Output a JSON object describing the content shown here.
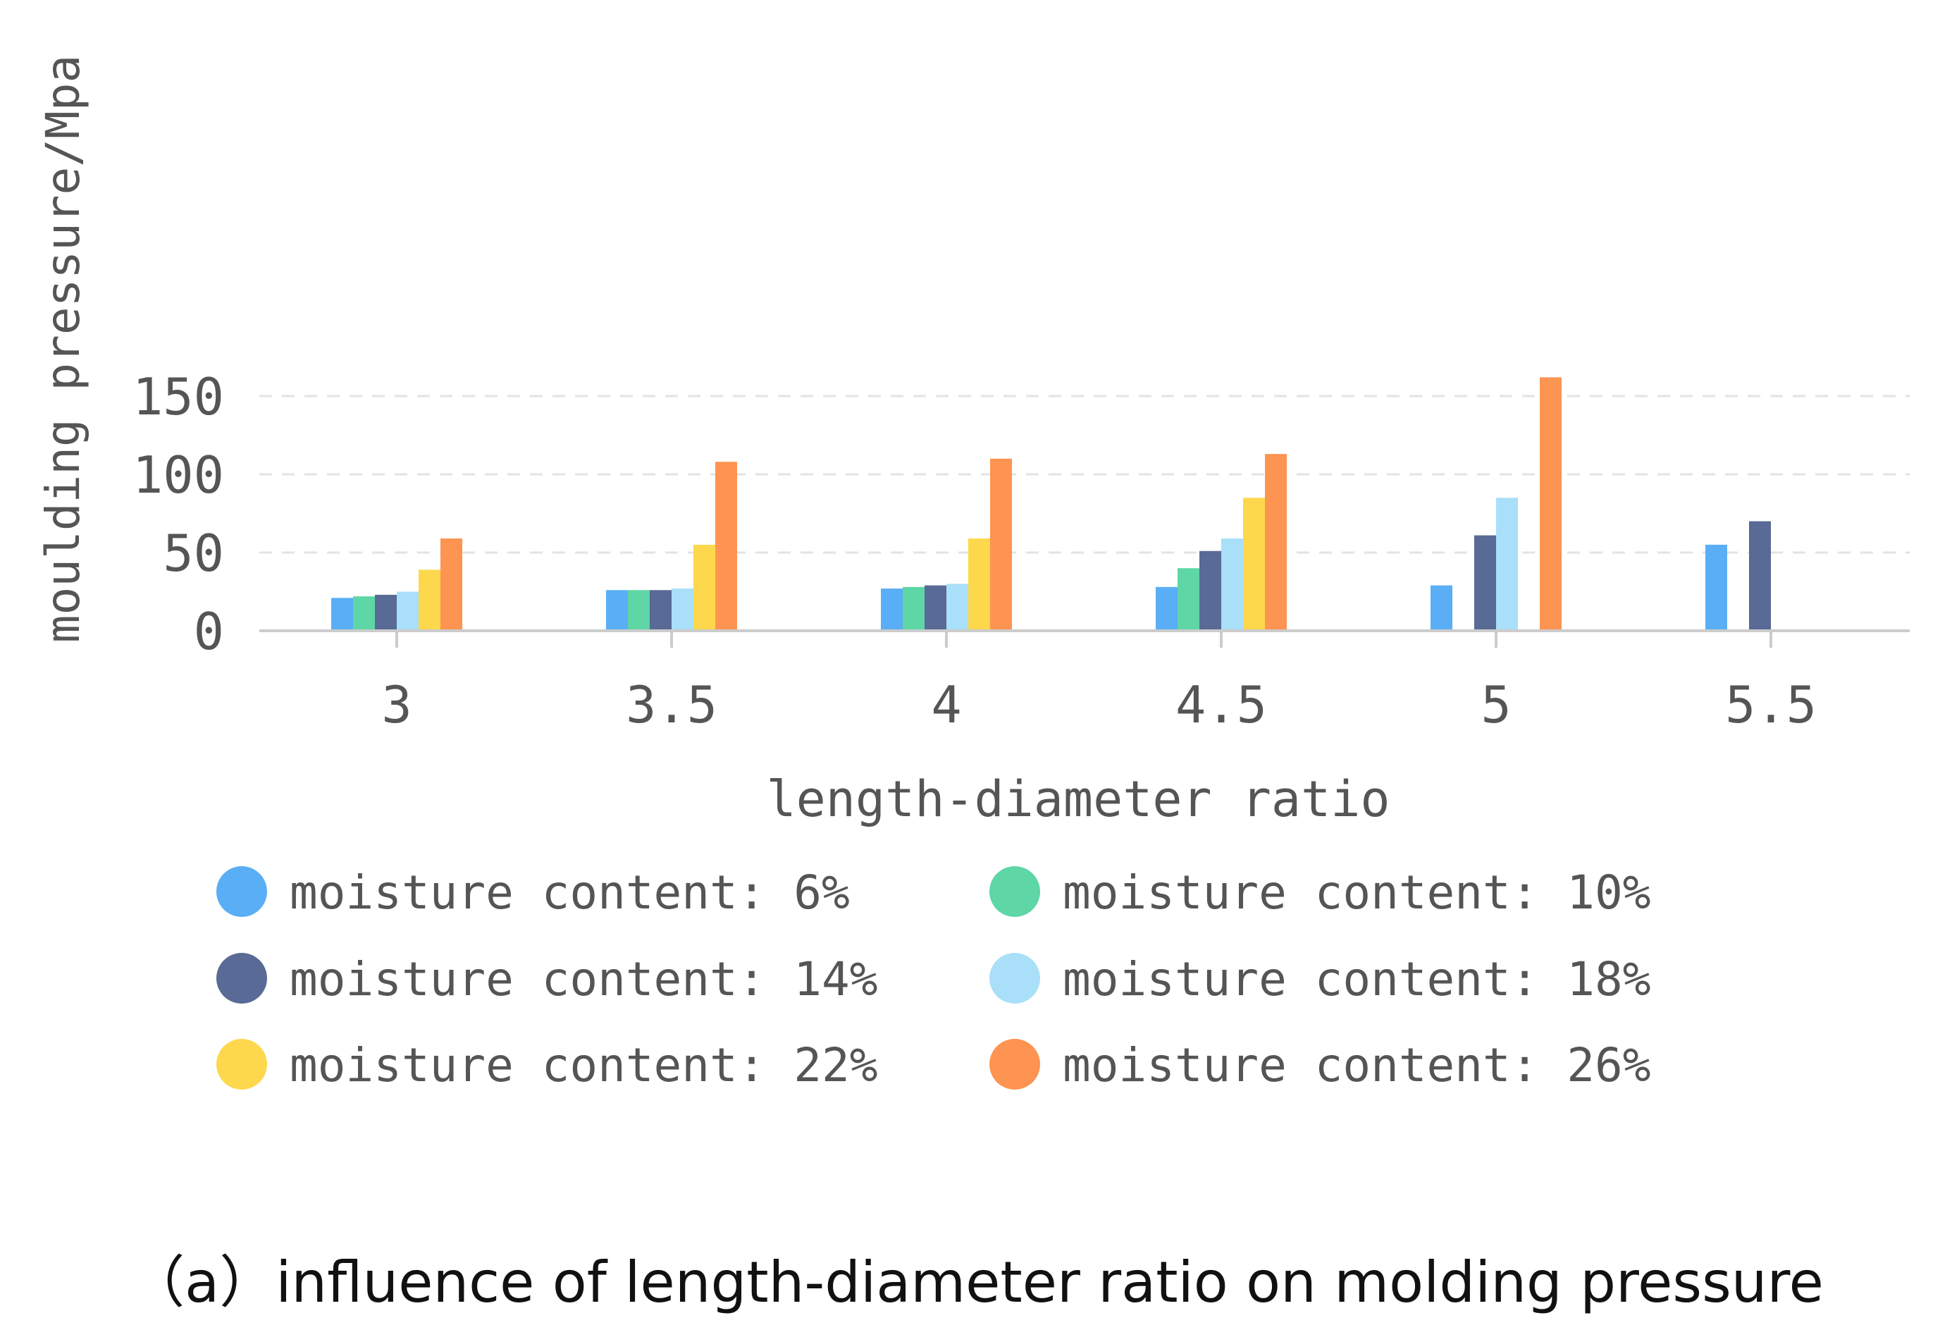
{
  "caption": "（a）influence of length-diameter ratio on molding pressure",
  "chart_data": {
    "type": "bar",
    "title": "",
    "xlabel": "length-diameter ratio",
    "ylabel": "moulding pressure/Mpa",
    "categories": [
      "3",
      "3.5",
      "4",
      "4.5",
      "5",
      "5.5"
    ],
    "tick_labels": [
      "3",
      "3.5",
      "4",
      "4.5",
      "5",
      "5.5"
    ],
    "yticks": [
      0,
      50,
      100,
      150
    ],
    "ylim": [
      0,
      170
    ],
    "grid": true,
    "legend_position": "bottom",
    "series": [
      {
        "name": "moisture content: 6%",
        "color": "#5aaef5",
        "values": [
          21,
          26,
          27,
          28,
          29,
          55
        ]
      },
      {
        "name": "moisture content: 10%",
        "color": "#5ed6a6",
        "values": [
          22,
          26,
          28,
          40,
          null,
          null
        ]
      },
      {
        "name": "moisture content: 14%",
        "color": "#586a95",
        "values": [
          23,
          26,
          29,
          51,
          61,
          70
        ]
      },
      {
        "name": "moisture content: 18%",
        "color": "#a9dff8",
        "values": [
          25,
          27,
          30,
          59,
          85,
          null
        ]
      },
      {
        "name": "moisture content: 22%",
        "color": "#fdd84c",
        "values": [
          39,
          55,
          59,
          85,
          null,
          null
        ]
      },
      {
        "name": "moisture content: 26%",
        "color": "#fd9451",
        "values": [
          59,
          108,
          110,
          113,
          162,
          null
        ]
      }
    ]
  }
}
